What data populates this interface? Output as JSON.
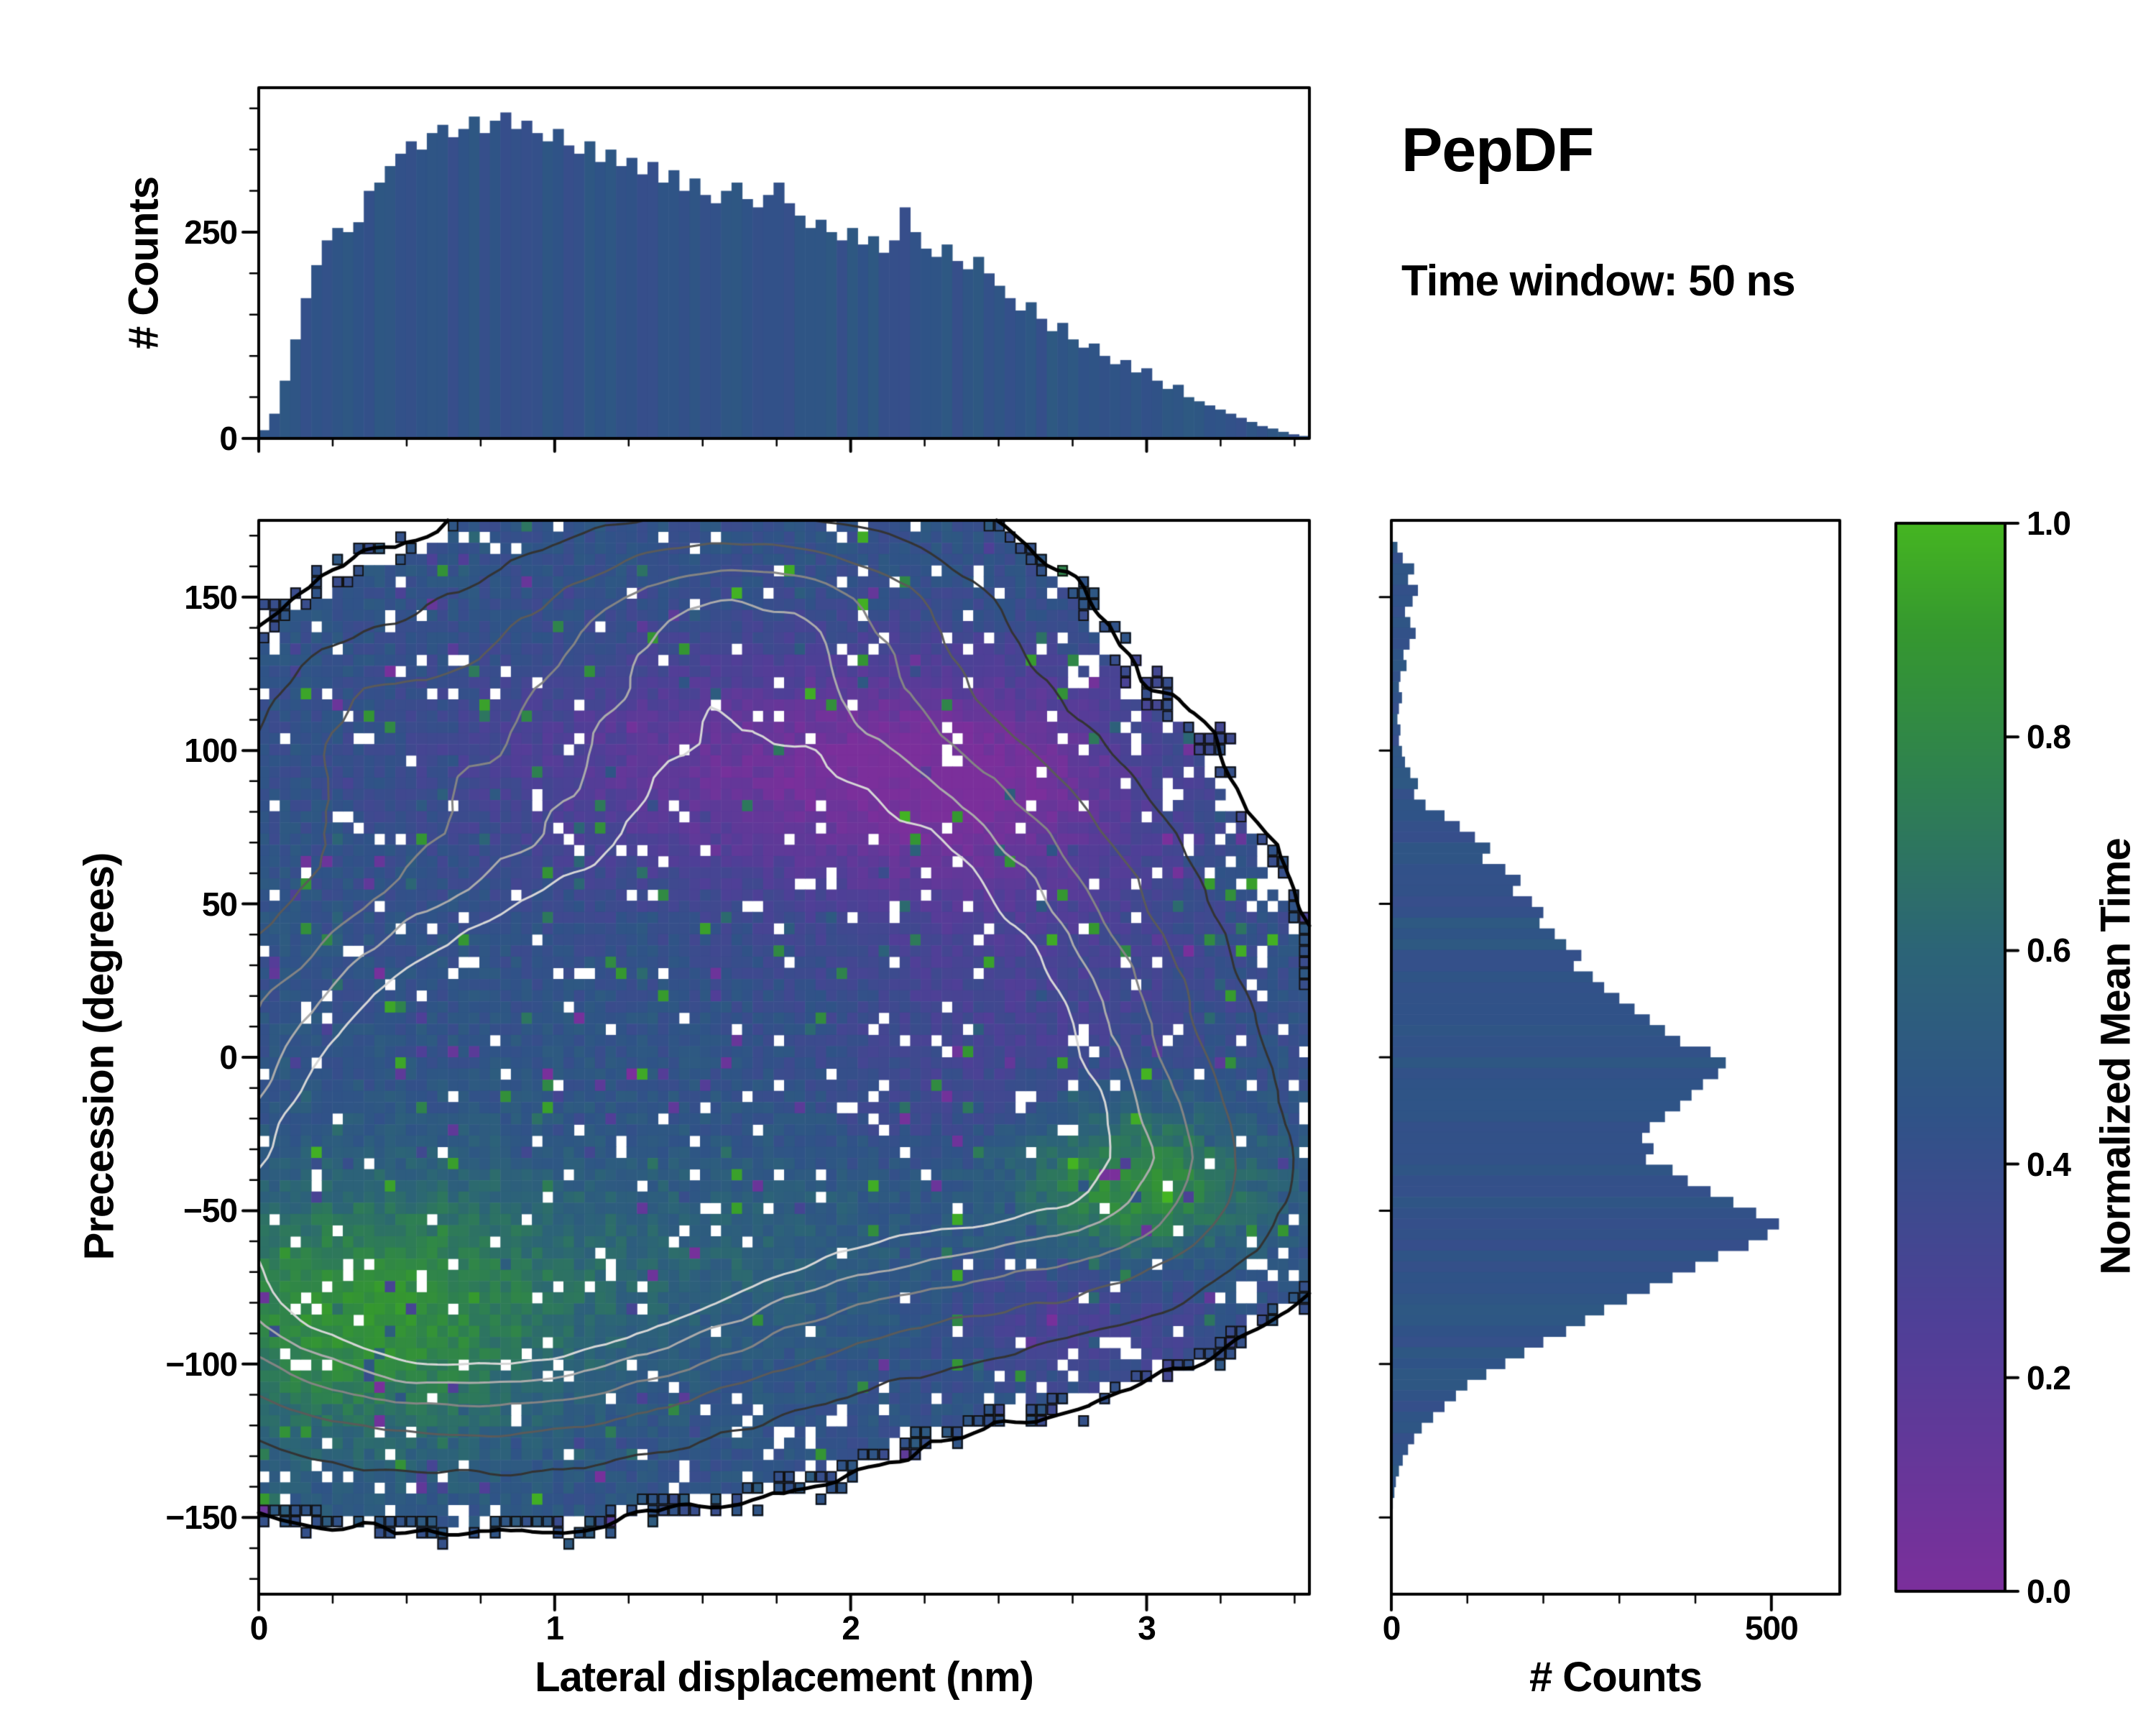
{
  "figure": {
    "title": "PepDF",
    "subtitle": "Time window: 50 ns",
    "background": "#ffffff"
  },
  "colormap": {
    "stops": [
      [
        0,
        "#7b2f9b"
      ],
      [
        0.25,
        "#4f3f97"
      ],
      [
        0.45,
        "#2f5387"
      ],
      [
        0.6,
        "#2c6477"
      ],
      [
        0.75,
        "#2e7f52"
      ],
      [
        0.9,
        "#35982f"
      ],
      [
        1,
        "#45b521"
      ]
    ]
  },
  "chart_data": [
    {
      "id": "top_histogram",
      "type": "bar",
      "orientation": "vertical",
      "ylabel": "# Counts",
      "x_range": [
        0,
        3.55
      ],
      "y_range": [
        0,
        425
      ],
      "yticks": [
        0,
        250
      ],
      "bar_value": 0.45,
      "values": [
        10,
        30,
        70,
        120,
        170,
        210,
        240,
        255,
        250,
        262,
        300,
        310,
        330,
        345,
        360,
        350,
        370,
        380,
        365,
        375,
        390,
        370,
        385,
        395,
        375,
        385,
        370,
        360,
        375,
        355,
        345,
        360,
        335,
        350,
        330,
        340,
        320,
        335,
        310,
        325,
        300,
        315,
        295,
        285,
        300,
        310,
        290,
        280,
        295,
        310,
        285,
        270,
        255,
        265,
        250,
        240,
        255,
        235,
        245,
        225,
        240,
        280,
        250,
        230,
        220,
        235,
        215,
        205,
        220,
        200,
        185,
        170,
        155,
        165,
        145,
        130,
        140,
        120,
        110,
        115,
        100,
        90,
        95,
        80,
        85,
        70,
        60,
        65,
        50,
        45,
        40,
        35,
        30,
        25,
        20,
        15,
        12,
        8,
        5,
        3
      ]
    },
    {
      "id": "main_heatmap",
      "type": "heatmap",
      "xlabel": "Lateral displacement (nm)",
      "ylabel": "Precession (degrees)",
      "x_range": [
        0,
        3.55
      ],
      "y_range": [
        -175,
        175
      ],
      "xticks": [
        0,
        1,
        2,
        3
      ],
      "yticks": [
        -150,
        -100,
        -50,
        0,
        50,
        100,
        150
      ],
      "grid": [
        100,
        96
      ],
      "fill_threshold": 0.14,
      "value_base": 0.45,
      "density_blobs": [
        [
          0.75,
          0.8,
          -15,
          0.85,
          62
        ],
        [
          0.7,
          0.6,
          -75,
          0.75,
          38
        ],
        [
          0.6,
          1.5,
          5,
          1.0,
          55
        ],
        [
          0.5,
          1.35,
          118,
          0.65,
          38
        ],
        [
          0.38,
          1.75,
          150,
          0.55,
          22
        ],
        [
          0.45,
          2.3,
          -25,
          0.65,
          50
        ],
        [
          0.33,
          2.95,
          -45,
          0.45,
          28
        ],
        [
          0.38,
          2.05,
          85,
          0.6,
          35
        ],
        [
          0.3,
          2.6,
          30,
          0.5,
          45
        ],
        [
          0.25,
          0.3,
          108,
          0.3,
          25
        ]
      ],
      "value_regions": [
        [
          0.4,
          0.35,
          -85,
          0.5,
          30
        ],
        [
          0.45,
          2.95,
          -42,
          0.3,
          20
        ],
        [
          0.12,
          1.8,
          -60,
          0.8,
          25
        ],
        [
          -0.32,
          1.7,
          95,
          0.7,
          28
        ],
        [
          -0.25,
          2.45,
          90,
          0.4,
          25
        ],
        [
          -0.15,
          2.6,
          10,
          0.5,
          55
        ],
        [
          -0.2,
          2.8,
          -80,
          0.35,
          18
        ]
      ],
      "contour_levels": [
        0.14,
        0.32,
        0.5,
        0.66,
        0.8,
        0.92
      ],
      "contour_colors": [
        "#000000",
        "#333333",
        "#5a5a5a",
        "#848484",
        "#ababab",
        "#d6d6d6"
      ],
      "contour_widths": [
        5,
        3,
        3,
        3,
        3,
        3
      ]
    },
    {
      "id": "right_histogram",
      "type": "bar",
      "orientation": "horizontal",
      "xlabel": "# Counts",
      "x_range": [
        0,
        590
      ],
      "xticks": [
        0,
        500
      ],
      "y_range": [
        -175,
        175
      ],
      "bar_value": 0.45,
      "values": [
        0,
        0,
        8,
        15,
        30,
        22,
        35,
        28,
        18,
        25,
        32,
        24,
        16,
        20,
        12,
        10,
        14,
        10,
        8,
        12,
        10,
        14,
        18,
        25,
        35,
        30,
        45,
        70,
        90,
        110,
        130,
        120,
        150,
        170,
        160,
        185,
        200,
        195,
        215,
        230,
        250,
        240,
        265,
        280,
        300,
        320,
        340,
        360,
        380,
        420,
        440,
        430,
        410,
        395,
        380,
        360,
        340,
        330,
        345,
        335,
        370,
        390,
        420,
        450,
        480,
        510,
        495,
        470,
        430,
        400,
        370,
        340,
        310,
        280,
        255,
        230,
        200,
        175,
        150,
        125,
        100,
        85,
        70,
        55,
        40,
        30,
        22,
        15,
        10,
        6,
        4,
        2,
        0,
        0,
        0,
        0,
        0,
        0,
        0,
        0
      ]
    },
    {
      "id": "colorbar",
      "label": "Normalized Mean Time",
      "ticks": [
        "0.0",
        "0.2",
        "0.4",
        "0.6",
        "0.8",
        "1.0"
      ],
      "range": [
        0,
        1
      ]
    }
  ]
}
